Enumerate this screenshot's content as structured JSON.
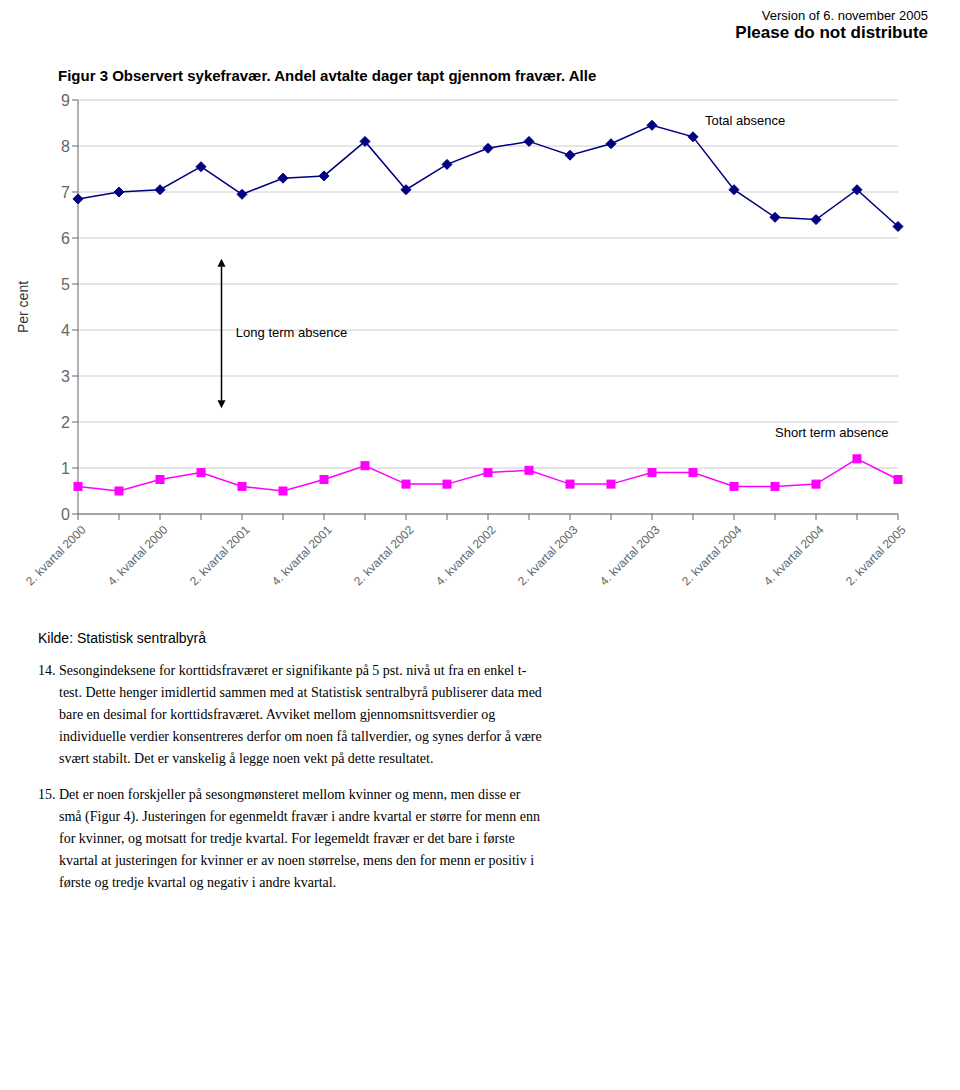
{
  "chart_data": {
    "type": "line",
    "title": "Figur 3 Observert sykefravær. Andel avtalte dager tapt gjennom fravær. Alle",
    "header": [
      "Version of 6. november 2005",
      "Please do not distribute"
    ],
    "ylabel": "Per cent",
    "source": "Kilde: Statistisk sentralbyrå",
    "paragraphs": [
      [
        "14. Sesongindeksene for korttidsfraværet er signifikante på 5 pst. nivå ut fra en enkel t-",
        "      test. Dette henger imidlertid sammen med at Statistisk sentralbyrå publiserer data med",
        "      bare en desimal for korttidsfraværet. Avviket mellom gjennomsnittsverdier og",
        "      individuelle verdier konsentreres derfor om noen få tallverdier, og synes derfor å være",
        "      svært stabilt. Det er vanskelig å legge noen vekt på dette resultatet."
      ],
      [
        "15. Det er noen forskjeller på sesongmønsteret mellom kvinner og menn, men disse er",
        "      små (Figur 4). Justeringen for egenmeldt fravær i andre kvartal er større for menn enn",
        "      for kvinner, og motsatt for tredje kvartal. For legemeldt fravær er det bare i første",
        "      kvartal at justeringen for kvinner er av noen størrelse, mens den for menn er positiv i",
        "      første og tredje kvartal og negativ i andre kvartal."
      ]
    ],
    "categories": [
      "2. kvartal 2000",
      null,
      "4. kvartal 2000",
      null,
      "2. kvartal 2001",
      null,
      "4. kvartal 2001",
      null,
      "2. kvartal 2002",
      null,
      "4. kvartal 2002",
      null,
      "2. kvartal 2003",
      null,
      "4. kvartal 2003",
      null,
      "2. kvartal 2004",
      null,
      "4. kvartal 2004",
      null,
      "2. kvartal 2005"
    ],
    "series": [
      {
        "name": "Total absence",
        "color": "#000080",
        "marker": "diamond",
        "values": [
          6.85,
          7.0,
          7.05,
          7.55,
          6.95,
          7.3,
          7.35,
          8.1,
          7.05,
          7.6,
          7.95,
          8.1,
          7.8,
          8.05,
          8.45,
          8.2,
          7.05,
          6.45,
          6.4,
          7.05,
          6.25
        ]
      },
      {
        "name": "Short term absence",
        "color": "#FF00FF",
        "marker": "square",
        "values": [
          0.6,
          0.5,
          0.75,
          0.9,
          0.6,
          0.5,
          0.75,
          1.05,
          0.65,
          0.65,
          0.9,
          0.95,
          0.65,
          0.65,
          0.9,
          0.9,
          0.6,
          0.6,
          0.65,
          1.2,
          0.75
        ]
      }
    ],
    "annotations": [
      "Long term absence"
    ],
    "ylim": [
      0,
      9
    ],
    "yticks": [
      0,
      1,
      2,
      3,
      4,
      5,
      6,
      7,
      8,
      9
    ],
    "grid": true
  }
}
